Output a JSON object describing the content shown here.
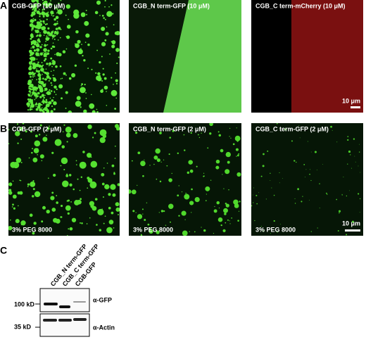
{
  "panel_a": {
    "label": "A",
    "images": [
      {
        "title": "CGB-GFP (10 μM)"
      },
      {
        "title": "CGB_N term-GFP (10 μM)"
      },
      {
        "title": "CGB_C term-mCherry (10 μM)"
      }
    ],
    "scale_bar": "10 μm"
  },
  "panel_b": {
    "label": "B",
    "images": [
      {
        "title": "CGB-GFP (2 μM)",
        "condition": "3% PEG 8000"
      },
      {
        "title": "CGB_N term-GFP (2 μM)",
        "condition": "3% PEG 8000"
      },
      {
        "title": "CGB_C term-GFP (2 μM)",
        "condition": "3% PEG 8000"
      }
    ],
    "scale_bar": "10 μm"
  },
  "panel_c": {
    "label": "C",
    "lanes": [
      "CGB_N term-GFP",
      "CGB_C term-GFP",
      "CGB-GFP"
    ],
    "blots": [
      {
        "marker": "100 kD",
        "antibody": "α-GFP"
      },
      {
        "marker": "35 kD",
        "antibody": "α-Actin"
      }
    ]
  }
}
